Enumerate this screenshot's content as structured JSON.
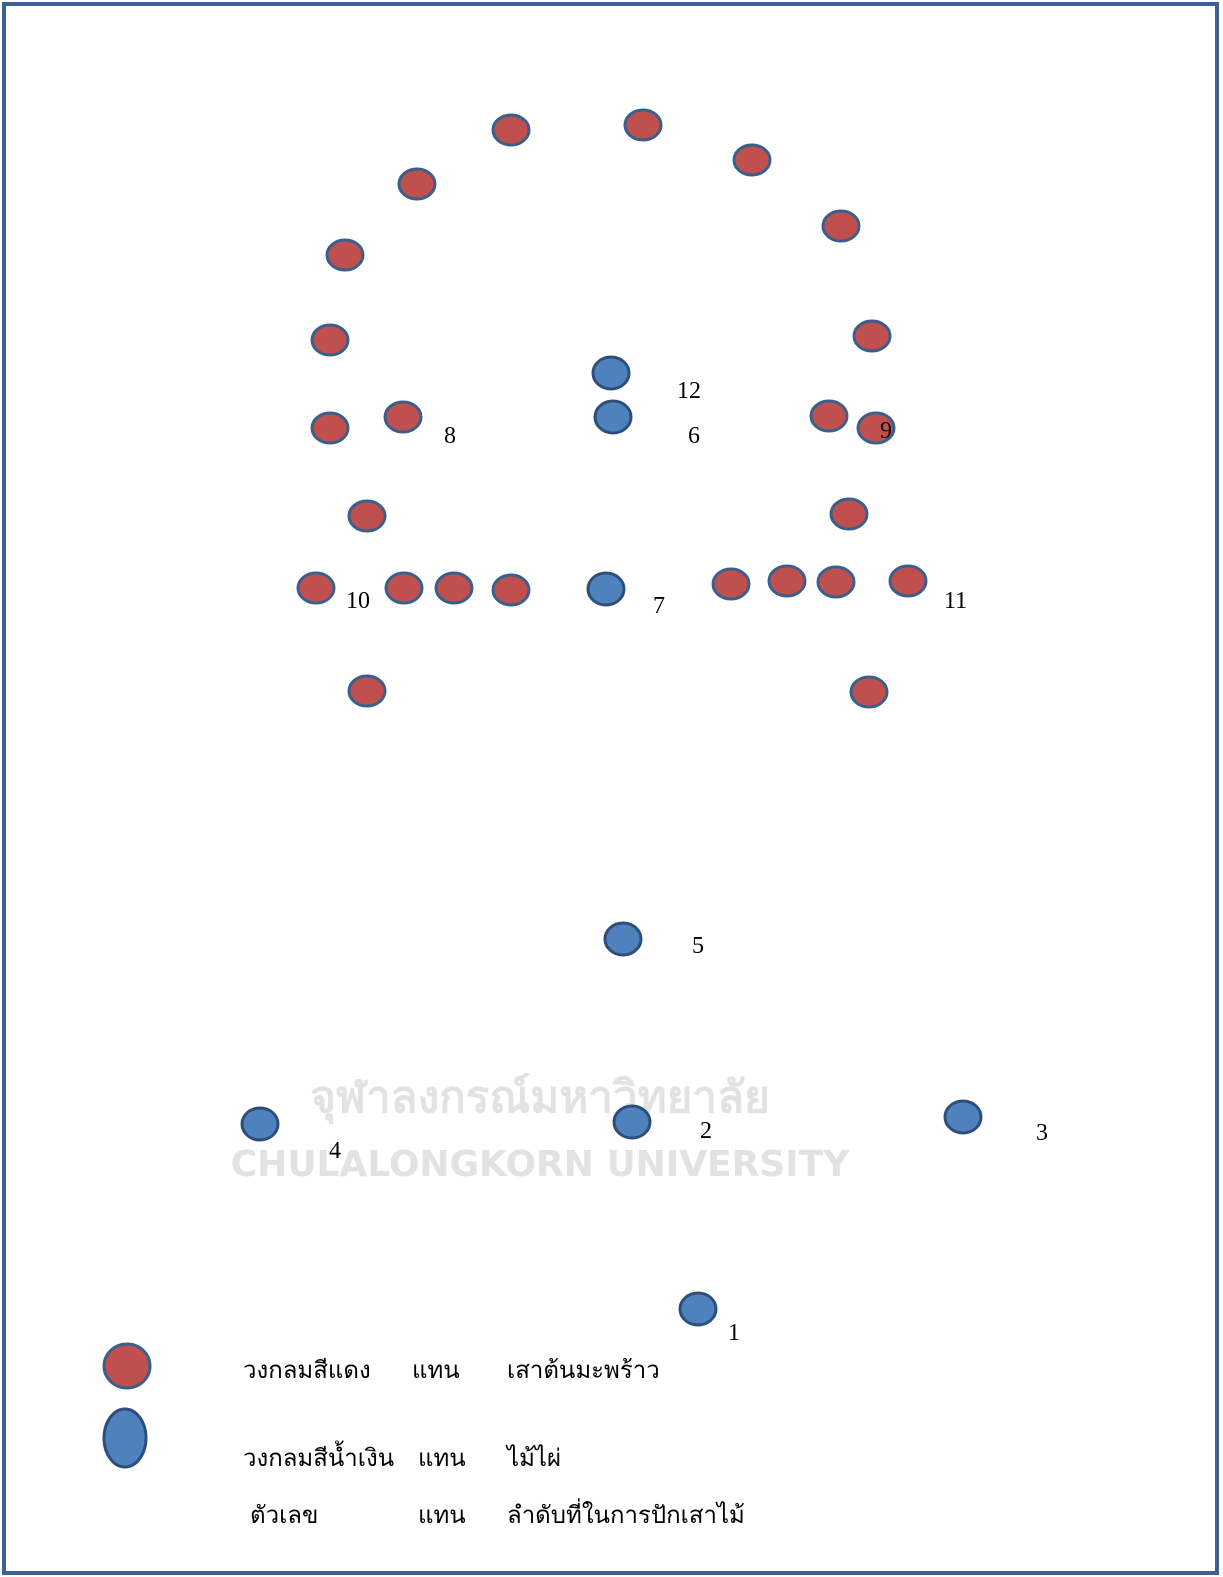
{
  "labels": [
    "1",
    "2",
    "3",
    "4",
    "5",
    "6",
    "7",
    "8",
    "9",
    "10",
    "11",
    "12"
  ],
  "watermark": {
    "thai": "จุฬาลงกรณ์มหาวิทยาลัย",
    "english": "CHULALONGKORN UNIVERSITY"
  },
  "legend": {
    "rows": [
      {
        "term": "วงกลมสีแดง",
        "verb": "แทน",
        "meaning": "เสาต้นมะพร้าว"
      },
      {
        "term": "วงกลมสีน้ำเงิน",
        "verb": "แทน",
        "meaning": "ไม้ไผ่"
      },
      {
        "term": "ตัวเลข",
        "verb": "แทน",
        "meaning": "ลำดับที่ในการปักเสาไม้"
      }
    ]
  }
}
